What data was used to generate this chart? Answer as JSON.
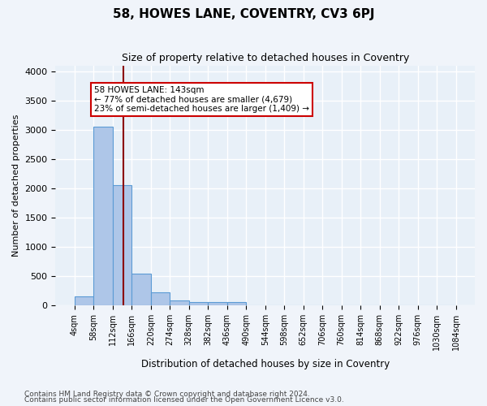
{
  "title": "58, HOWES LANE, COVENTRY, CV3 6PJ",
  "subtitle": "Size of property relative to detached houses in Coventry",
  "xlabel": "Distribution of detached houses by size in Coventry",
  "ylabel": "Number of detached properties",
  "footnote1": "Contains HM Land Registry data © Crown copyright and database right 2024.",
  "footnote2": "Contains public sector information licensed under the Open Government Licence v3.0.",
  "bin_edges": [
    4,
    58,
    112,
    166,
    220,
    274,
    328,
    382,
    436,
    490,
    544,
    598,
    652,
    706,
    760,
    814,
    868,
    922,
    976,
    1030,
    1084
  ],
  "bin_labels": [
    "4sqm",
    "58sqm",
    "112sqm",
    "166sqm",
    "220sqm",
    "274sqm",
    "328sqm",
    "382sqm",
    "436sqm",
    "490sqm",
    "544sqm",
    "598sqm",
    "652sqm",
    "706sqm",
    "760sqm",
    "814sqm",
    "868sqm",
    "922sqm",
    "976sqm",
    "1030sqm",
    "1084sqm"
  ],
  "bar_heights": [
    150,
    3050,
    2060,
    545,
    220,
    80,
    60,
    50,
    60,
    0,
    0,
    0,
    0,
    0,
    0,
    0,
    0,
    0,
    0,
    0
  ],
  "bar_color": "#aec6e8",
  "bar_edge_color": "#5b9bd5",
  "red_line_x": 143,
  "annotation_text": "58 HOWES LANE: 143sqm\n← 77% of detached houses are smaller (4,679)\n23% of semi-detached houses are larger (1,409) →",
  "annotation_box_color": "#ffffff",
  "annotation_box_edge": "#cc0000",
  "red_line_color": "#8b0000",
  "ylim": [
    0,
    4100
  ],
  "bg_color": "#e8f0f8",
  "grid_color": "#ffffff"
}
